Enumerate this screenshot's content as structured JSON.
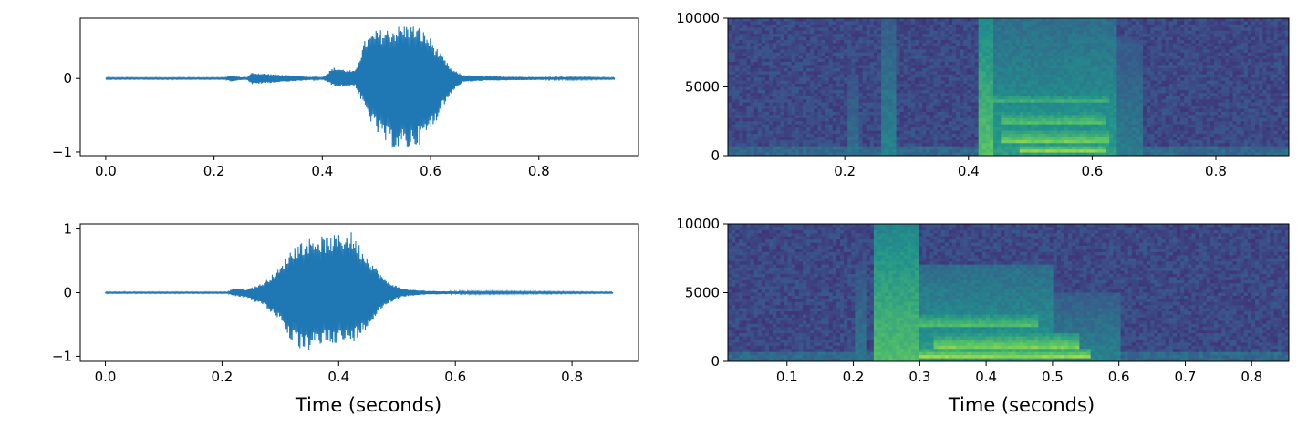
{
  "chart_data": [
    {
      "id": "waveform-top",
      "type": "line",
      "title": "",
      "xlabel": "",
      "ylabel": "",
      "xlim": [
        -0.047,
        0.984
      ],
      "ylim": [
        -1.05,
        0.82
      ],
      "xticks": [
        0.0,
        0.2,
        0.4,
        0.6,
        0.8
      ],
      "xtick_labels": [
        "0.0",
        "0.2",
        "0.4",
        "0.6",
        "0.8"
      ],
      "yticks": [
        -1,
        0
      ],
      "ytick_labels": [
        "−1",
        "0"
      ],
      "color": "#1f77b4",
      "duration": 0.94,
      "envelope": {
        "x": [
          0.0,
          0.22,
          0.23,
          0.26,
          0.27,
          0.4,
          0.42,
          0.43,
          0.46,
          0.48,
          0.5,
          0.52,
          0.54,
          0.56,
          0.58,
          0.6,
          0.62,
          0.64,
          0.66,
          0.7,
          0.8,
          0.94
        ],
        "upper": [
          0.01,
          0.01,
          0.04,
          0.01,
          0.08,
          0.01,
          0.15,
          0.14,
          0.1,
          0.55,
          0.66,
          0.68,
          0.72,
          0.75,
          0.7,
          0.55,
          0.32,
          0.12,
          0.05,
          0.03,
          0.02,
          0.01
        ],
        "lower": [
          -0.01,
          -0.01,
          -0.04,
          -0.01,
          -0.08,
          -0.01,
          -0.1,
          -0.12,
          -0.1,
          -0.45,
          -0.75,
          -0.92,
          -0.98,
          -0.97,
          -0.9,
          -0.72,
          -0.45,
          -0.18,
          -0.05,
          -0.03,
          -0.02,
          -0.01
        ]
      }
    },
    {
      "id": "waveform-bottom",
      "type": "line",
      "title": "",
      "xlabel": "Time (seconds)",
      "ylabel": "",
      "xlim": [
        -0.043,
        0.914
      ],
      "ylim": [
        -1.08,
        1.08
      ],
      "xticks": [
        0.0,
        0.2,
        0.4,
        0.6,
        0.8
      ],
      "xtick_labels": [
        "0.0",
        "0.2",
        "0.4",
        "0.6",
        "0.8"
      ],
      "yticks": [
        -1,
        0,
        1
      ],
      "ytick_labels": [
        "−1",
        "0",
        "1"
      ],
      "color": "#1f77b4",
      "duration": 0.87,
      "envelope": {
        "x": [
          0.0,
          0.21,
          0.22,
          0.24,
          0.27,
          0.3,
          0.32,
          0.34,
          0.36,
          0.38,
          0.4,
          0.42,
          0.44,
          0.46,
          0.48,
          0.5,
          0.52,
          0.55,
          0.6,
          0.87
        ],
        "upper": [
          0.01,
          0.01,
          0.08,
          0.05,
          0.15,
          0.4,
          0.72,
          0.85,
          0.9,
          0.88,
          0.92,
          0.98,
          0.7,
          0.45,
          0.2,
          0.1,
          0.05,
          0.03,
          0.02,
          0.01
        ],
        "lower": [
          -0.01,
          -0.01,
          -0.05,
          -0.08,
          -0.2,
          -0.45,
          -0.8,
          -0.95,
          -0.88,
          -0.78,
          -0.8,
          -0.82,
          -0.65,
          -0.42,
          -0.2,
          -0.1,
          -0.05,
          -0.03,
          -0.02,
          -0.01
        ]
      }
    },
    {
      "id": "spectrogram-top",
      "type": "heatmap",
      "title": "",
      "xlabel": "",
      "ylabel": "",
      "xlim": [
        0.011,
        0.918
      ],
      "ylim": [
        0,
        10000
      ],
      "xticks": [
        0.2,
        0.4,
        0.6,
        0.8
      ],
      "xtick_labels": [
        "0.2",
        "0.4",
        "0.6",
        "0.8"
      ],
      "yticks": [
        0,
        5000,
        10000
      ],
      "ytick_labels": [
        "0",
        "5000",
        "10000"
      ],
      "colormap": "viridis",
      "regions": [
        {
          "t0": 0.205,
          "t1": 0.225,
          "f0": 0,
          "f1": 6000,
          "level": 0.38
        },
        {
          "t0": 0.26,
          "t1": 0.285,
          "f0": 0,
          "f1": 10000,
          "level": 0.45
        },
        {
          "t0": 0.415,
          "t1": 0.44,
          "f0": 0,
          "f1": 10000,
          "level": 0.72
        },
        {
          "t0": 0.44,
          "t1": 0.64,
          "f0": 0,
          "f1": 10000,
          "level": 0.55
        },
        {
          "t0": 0.64,
          "t1": 0.68,
          "f0": 0,
          "f1": 8500,
          "level": 0.42
        },
        {
          "t0": 0.48,
          "t1": 0.62,
          "f0": 200,
          "f1": 700,
          "level": 0.92
        },
        {
          "t0": 0.45,
          "t1": 0.63,
          "f0": 900,
          "f1": 1800,
          "level": 0.82
        },
        {
          "t0": 0.45,
          "t1": 0.62,
          "f0": 2200,
          "f1": 3200,
          "level": 0.75
        },
        {
          "t0": 0.44,
          "t1": 0.63,
          "f0": 3800,
          "f1": 4400,
          "level": 0.7
        }
      ]
    },
    {
      "id": "spectrogram-bottom",
      "type": "heatmap",
      "title": "",
      "xlabel": "Time (seconds)",
      "ylabel": "",
      "xlim": [
        0.011,
        0.856
      ],
      "ylim": [
        0,
        10000
      ],
      "xticks": [
        0.1,
        0.2,
        0.3,
        0.4,
        0.5,
        0.6,
        0.7,
        0.8
      ],
      "xtick_labels": [
        "0.1",
        "0.2",
        "0.3",
        "0.4",
        "0.5",
        "0.6",
        "0.7",
        "0.8"
      ],
      "yticks": [
        0,
        5000,
        10000
      ],
      "ytick_labels": [
        "0",
        "5000",
        "10000"
      ],
      "colormap": "viridis",
      "regions": [
        {
          "t0": 0.205,
          "t1": 0.22,
          "f0": 0,
          "f1": 7000,
          "level": 0.4
        },
        {
          "t0": 0.23,
          "t1": 0.3,
          "f0": 0,
          "f1": 10000,
          "level": 0.7
        },
        {
          "t0": 0.3,
          "t1": 0.5,
          "f0": 0,
          "f1": 7000,
          "level": 0.55
        },
        {
          "t0": 0.5,
          "t1": 0.6,
          "f0": 0,
          "f1": 5000,
          "level": 0.45
        },
        {
          "t0": 0.3,
          "t1": 0.56,
          "f0": 200,
          "f1": 800,
          "level": 0.92
        },
        {
          "t0": 0.32,
          "t1": 0.54,
          "f0": 1000,
          "f1": 2000,
          "level": 0.8
        },
        {
          "t0": 0.3,
          "t1": 0.48,
          "f0": 2500,
          "f1": 3500,
          "level": 0.72
        }
      ]
    }
  ]
}
